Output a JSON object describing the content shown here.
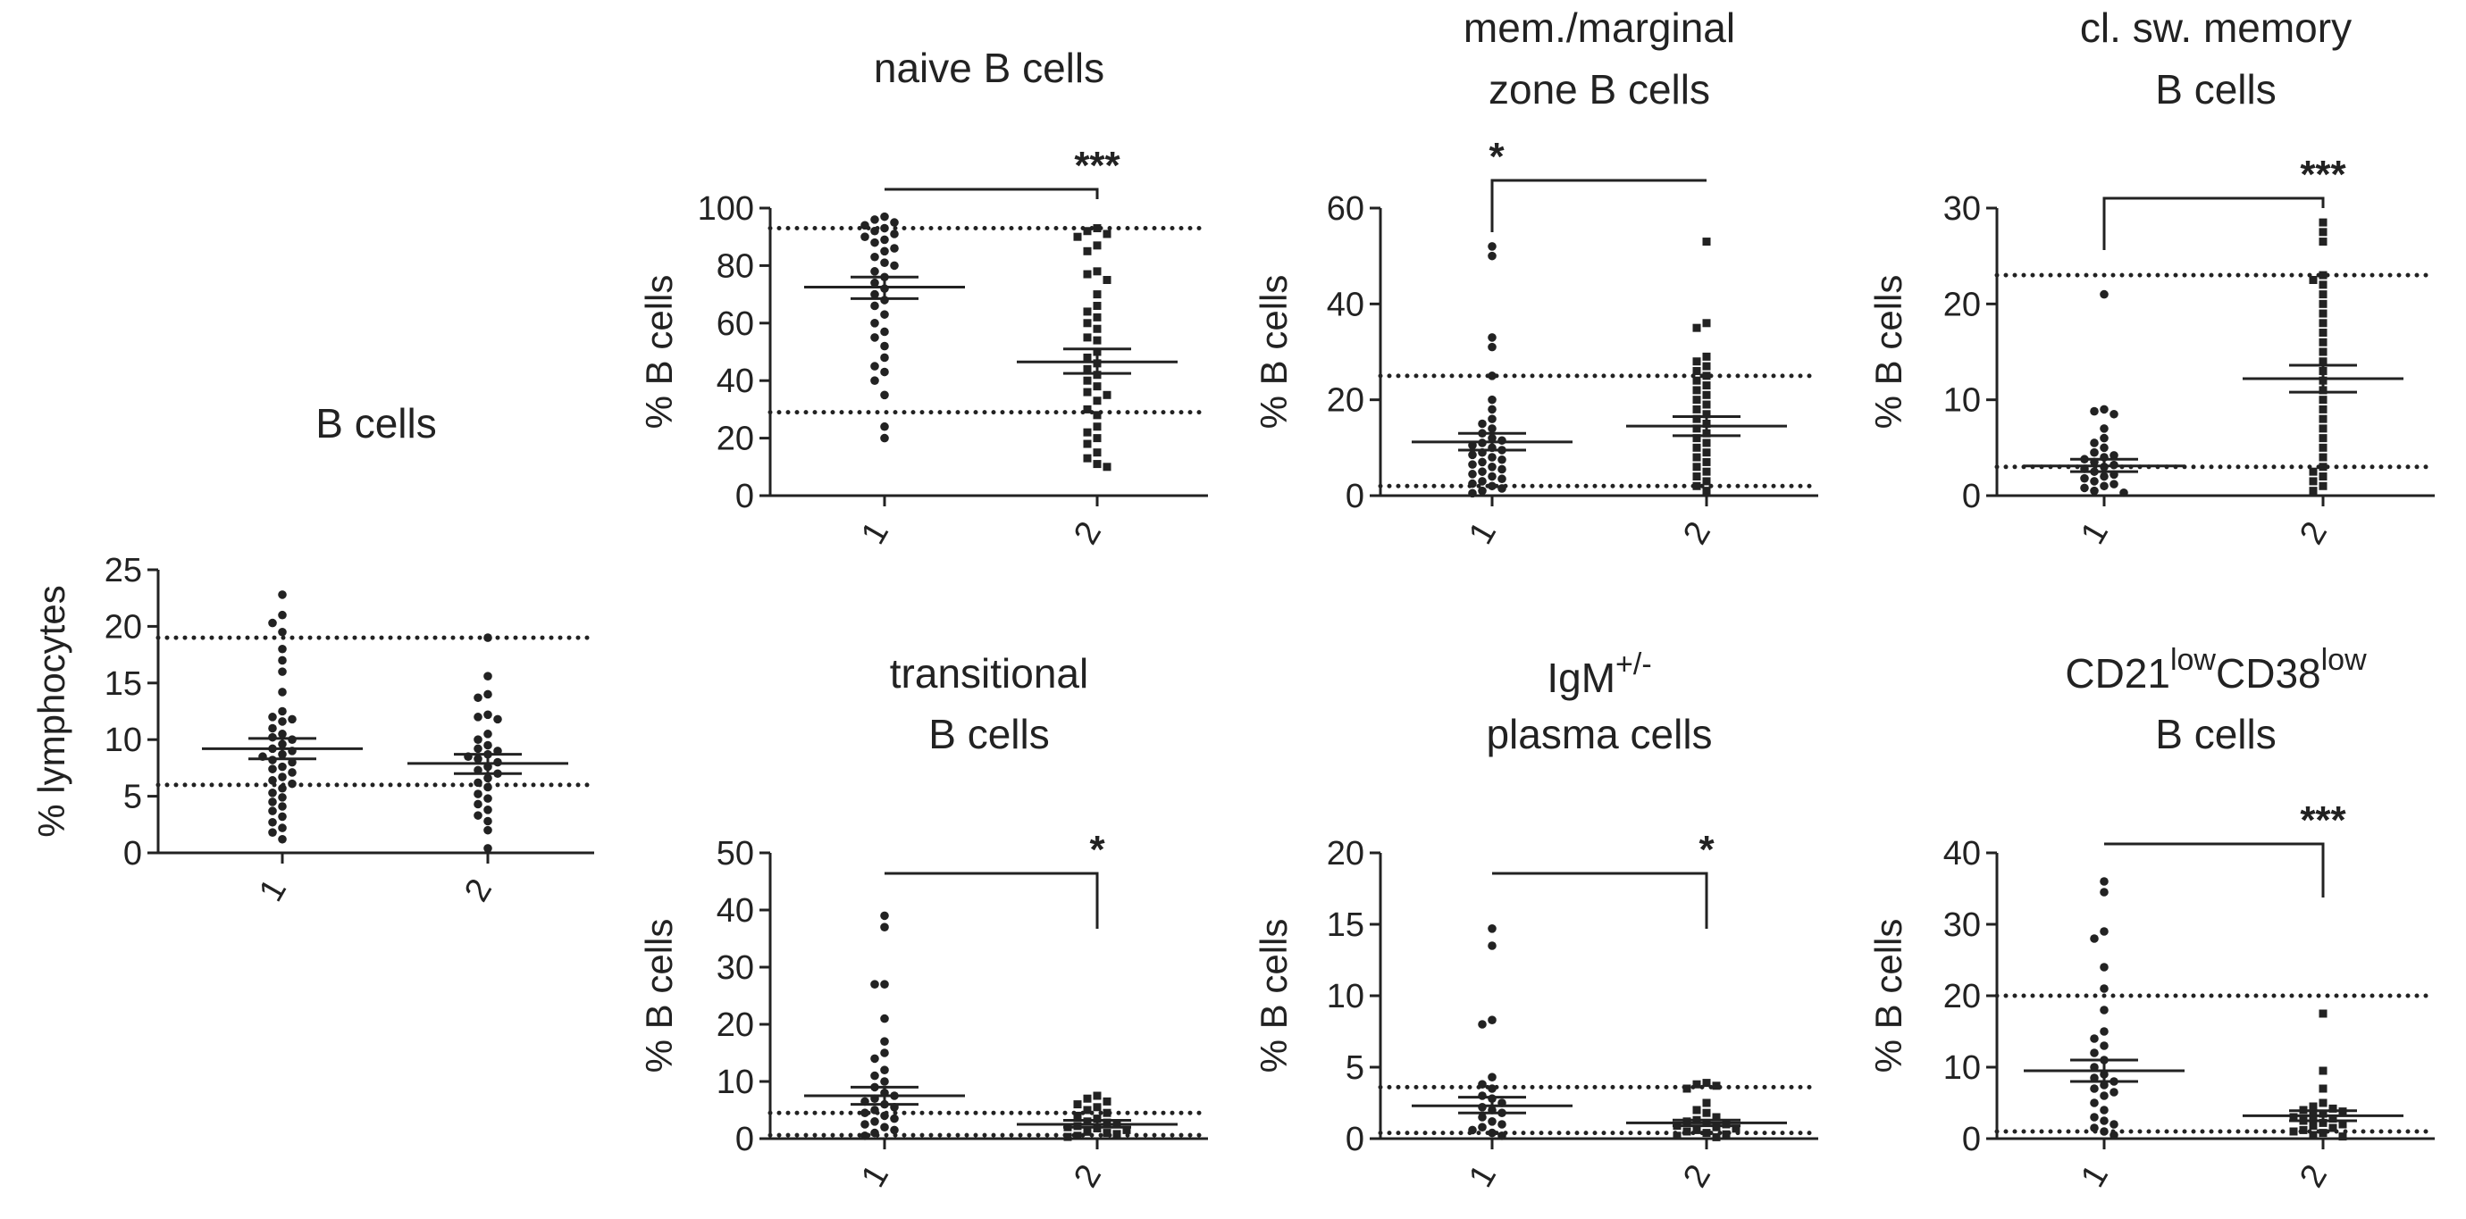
{
  "figure": {
    "description_free": true
  },
  "chart_data": [
    {
      "id": "b-cells",
      "type": "scatter",
      "title": [
        "B cells"
      ],
      "ylabel": "% lymphocytes",
      "categories": [
        "1",
        "2"
      ],
      "ylim": [
        0,
        25
      ],
      "yticks": [
        0,
        5,
        10,
        15,
        20,
        25
      ],
      "yticklabels": [
        "0",
        "5",
        "10",
        "15",
        "20",
        "25"
      ],
      "reference_lines": [
        6,
        19
      ],
      "series": [
        {
          "name": "1",
          "mean": 9.2,
          "sem_low": 8.3,
          "sem_high": 10.1,
          "values": [
            22.8,
            21.0,
            20.3,
            19.5,
            18.0,
            17.0,
            16.0,
            14.2,
            12.5,
            12.0,
            11.8,
            11.6,
            11.0,
            10.5,
            10.2,
            10.0,
            9.6,
            9.2,
            9.0,
            8.7,
            8.5,
            8.2,
            8.0,
            7.6,
            7.4,
            7.1,
            6.7,
            6.4,
            6.1,
            5.7,
            5.3,
            4.9,
            4.5,
            4.1,
            3.7,
            3.2,
            2.7,
            2.2,
            1.8,
            1.2
          ]
        },
        {
          "name": "2",
          "mean": 7.9,
          "sem_low": 7.0,
          "sem_high": 8.7,
          "values": [
            19.0,
            15.6,
            14.0,
            13.7,
            12.2,
            12.0,
            11.8,
            10.5,
            10.0,
            9.5,
            9.2,
            9.0,
            8.7,
            8.5,
            8.3,
            8.0,
            7.6,
            7.3,
            7.0,
            6.6,
            6.2,
            5.8,
            5.2,
            4.8,
            4.3,
            3.8,
            3.3,
            2.8,
            2.0,
            0.4
          ]
        }
      ]
    },
    {
      "id": "naive-b-cells",
      "type": "scatter",
      "title": [
        "naive B cells"
      ],
      "ylabel": "% B cells",
      "categories": [
        "1",
        "2"
      ],
      "ylim": [
        0,
        100
      ],
      "yticks": [
        0,
        20,
        40,
        60,
        80,
        100
      ],
      "yticklabels": [
        "0",
        "20",
        "40",
        "60",
        "80",
        "100"
      ],
      "reference_lines": [
        29,
        93
      ],
      "significance": "***",
      "bracket": "left-tall",
      "series": [
        {
          "name": "1",
          "mean": 72.5,
          "sem_low": 68.5,
          "sem_high": 76.0,
          "values": [
            97,
            96,
            95,
            94,
            93,
            92,
            91,
            90,
            89,
            88,
            86,
            85,
            83,
            81,
            80,
            78,
            76,
            74,
            72,
            70,
            68,
            66,
            63,
            60,
            57,
            55,
            52,
            48,
            45,
            43,
            40,
            35,
            24,
            20
          ]
        },
        {
          "name": "2",
          "mean": 46.5,
          "sem_low": 42.5,
          "sem_high": 51.0,
          "values": [
            93,
            92,
            91,
            90,
            87,
            85,
            78,
            77,
            75,
            70,
            66,
            64,
            62,
            60,
            58,
            55,
            54,
            50,
            48,
            46,
            44,
            42,
            40,
            38,
            36,
            35,
            33,
            30,
            28,
            24,
            22,
            20,
            18,
            15,
            13,
            11,
            10
          ]
        }
      ]
    },
    {
      "id": "mem-marginal-zone-b-cells",
      "type": "scatter",
      "title": [
        "mem./marginal",
        "zone B cells"
      ],
      "ylabel": "% B cells",
      "categories": [
        "1",
        "2"
      ],
      "ylim": [
        0,
        60
      ],
      "yticks": [
        0,
        20,
        40,
        60
      ],
      "yticklabels": [
        "0",
        "20",
        "40",
        "60"
      ],
      "reference_lines": [
        2,
        25
      ],
      "significance": "*",
      "bracket": "left-tall",
      "series": [
        {
          "name": "1",
          "mean": 11.2,
          "sem_low": 9.5,
          "sem_high": 13.0,
          "values": [
            52,
            50,
            33,
            31,
            25,
            20,
            18,
            16,
            15,
            14,
            13,
            12,
            11.5,
            11,
            10.5,
            10,
            9.5,
            9,
            8.5,
            8,
            7.5,
            7,
            6.5,
            6,
            5.5,
            5,
            4.5,
            4,
            3.5,
            3,
            2.5,
            2,
            1.5,
            1,
            0.5
          ]
        },
        {
          "name": "2",
          "mean": 14.5,
          "sem_low": 12.5,
          "sem_high": 16.5,
          "values": [
            53,
            36,
            35,
            29,
            28,
            27,
            26,
            25,
            24,
            23,
            22,
            21,
            20,
            19,
            18,
            17,
            16,
            15,
            14,
            13,
            12,
            11,
            10,
            9,
            8,
            7,
            6,
            5,
            4,
            3,
            2,
            1
          ]
        }
      ]
    },
    {
      "id": "cl-sw-memory-b-cells",
      "type": "scatter",
      "title": [
        "cl. sw. memory",
        "B cells"
      ],
      "ylabel": "% B cells",
      "categories": [
        "1",
        "2"
      ],
      "ylim": [
        0,
        30
      ],
      "yticks": [
        0,
        10,
        20,
        30
      ],
      "yticklabels": [
        "0",
        "10",
        "20",
        "30"
      ],
      "reference_lines": [
        3,
        23
      ],
      "significance": "***",
      "bracket": "left-tall",
      "series": [
        {
          "name": "1",
          "mean": 3.1,
          "sem_low": 2.5,
          "sem_high": 3.8,
          "values": [
            21,
            9,
            8.8,
            8.5,
            7,
            6,
            5.5,
            5,
            4.5,
            4.2,
            4,
            3.8,
            3.5,
            3.2,
            3,
            2.8,
            2.5,
            2.2,
            2,
            1.8,
            1.5,
            1.2,
            1,
            0.8,
            0.5,
            0.3
          ]
        },
        {
          "name": "2",
          "mean": 12.2,
          "sem_low": 10.8,
          "sem_high": 13.6,
          "values": [
            28.5,
            27.5,
            26.5,
            23,
            22.5,
            22,
            21,
            20,
            19,
            18,
            17,
            16,
            15,
            14,
            13,
            12,
            11,
            10,
            9,
            8,
            7,
            6,
            5,
            4,
            3,
            2.5,
            2,
            1.5,
            1,
            0.5
          ]
        }
      ]
    },
    {
      "id": "transitional-b-cells",
      "type": "scatter",
      "title": [
        "transitional",
        "B cells"
      ],
      "ylabel": "% B cells",
      "categories": [
        "1",
        "2"
      ],
      "ylim": [
        0,
        50
      ],
      "yticks": [
        0,
        10,
        20,
        30,
        40,
        50
      ],
      "yticklabels": [
        "0",
        "10",
        "20",
        "30",
        "40",
        "50"
      ],
      "reference_lines": [
        0.6,
        4.5
      ],
      "significance": "*",
      "bracket": "right-tall",
      "series": [
        {
          "name": "1",
          "mean": 7.5,
          "sem_low": 6.0,
          "sem_high": 9.0,
          "values": [
            39,
            37,
            27,
            27,
            21,
            17,
            15,
            14,
            12,
            11,
            10,
            9,
            8,
            7.5,
            7,
            6.5,
            6,
            5.5,
            5,
            4.5,
            4,
            3.5,
            3,
            2.5,
            2,
            1.5,
            1,
            0.5
          ]
        },
        {
          "name": "2",
          "mean": 2.5,
          "sem_low": 2.0,
          "sem_high": 3.2,
          "values": [
            7.5,
            7,
            6.5,
            6,
            5.5,
            5,
            4.5,
            4,
            3.5,
            3,
            2.8,
            2.5,
            2.2,
            2,
            1.8,
            1.5,
            1.2,
            1,
            0.8,
            0.5,
            0.3
          ]
        }
      ]
    },
    {
      "id": "igm-plasma-cells",
      "type": "scatter",
      "title": [
        "IgM",
        "+/-",
        "plasma cells"
      ],
      "ylabel": "% B cells",
      "categories": [
        "1",
        "2"
      ],
      "ylim": [
        0,
        20
      ],
      "yticks": [
        0,
        5,
        10,
        15,
        20
      ],
      "yticklabels": [
        "0",
        "5",
        "10",
        "15",
        "20"
      ],
      "reference_lines": [
        0.4,
        3.6
      ],
      "significance": "*",
      "bracket": "right-tall",
      "series": [
        {
          "name": "1",
          "mean": 2.3,
          "sem_low": 1.8,
          "sem_high": 2.9,
          "values": [
            14.7,
            13.5,
            8.3,
            8.0,
            4.3,
            3.8,
            3.5,
            3.0,
            2.8,
            2.5,
            2.2,
            2.0,
            1.8,
            1.5,
            1.2,
            1.0,
            0.8,
            0.6,
            0.4,
            0.2
          ]
        },
        {
          "name": "2",
          "mean": 1.1,
          "sem_low": 0.9,
          "sem_high": 1.3,
          "values": [
            3.9,
            3.8,
            3.7,
            3.5,
            2.5,
            2.0,
            1.8,
            1.5,
            1.3,
            1.2,
            1.1,
            1.0,
            0.9,
            0.8,
            0.7,
            0.6,
            0.5,
            0.4,
            0.3,
            0.2,
            0.1
          ]
        }
      ]
    },
    {
      "id": "cd21low-cd38low-b-cells",
      "type": "scatter",
      "title": [
        "CD21",
        "low",
        "CD38",
        "low",
        "B cells"
      ],
      "ylabel": "% B cells",
      "categories": [
        "1",
        "2"
      ],
      "ylim": [
        0,
        40
      ],
      "yticks": [
        0,
        10,
        20,
        30,
        40
      ],
      "yticklabels": [
        "0",
        "10",
        "20",
        "30",
        "40"
      ],
      "reference_lines": [
        1,
        20
      ],
      "significance": "***",
      "bracket": "right-tall",
      "series": [
        {
          "name": "1",
          "mean": 9.5,
          "sem_low": 8.0,
          "sem_high": 11.0,
          "values": [
            36,
            34.5,
            29,
            28,
            24,
            21,
            18,
            15,
            14,
            13,
            12,
            11,
            10,
            9,
            8.5,
            8,
            7.5,
            7,
            6.5,
            6,
            5,
            4,
            3,
            2.5,
            2,
            1.5,
            1,
            0.5
          ]
        },
        {
          "name": "2",
          "mean": 3.2,
          "sem_low": 2.5,
          "sem_high": 3.9,
          "values": [
            17.5,
            9.5,
            7,
            5,
            4.5,
            4.2,
            4,
            3.8,
            3.5,
            3.2,
            3,
            2.8,
            2.5,
            2.2,
            2,
            1.8,
            1.5,
            1.2,
            1,
            0.8,
            0.5,
            0.3
          ]
        }
      ]
    }
  ]
}
